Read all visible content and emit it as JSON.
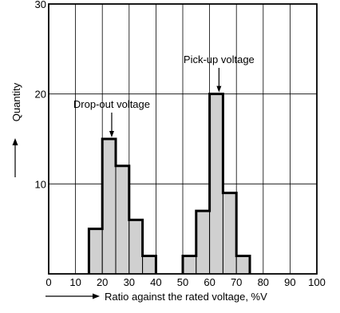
{
  "chart_data": {
    "type": "bar",
    "subtype": "histogram",
    "xlabel": "Ratio against the rated voltage, %V",
    "ylabel": "Quantity",
    "xlim": [
      0,
      100
    ],
    "ylim": [
      0,
      30
    ],
    "x_ticks": [
      "0",
      "10",
      "20",
      "30",
      "40",
      "50",
      "60",
      "70",
      "80",
      "90",
      "100"
    ],
    "y_ticks": [
      "10",
      "20",
      "30"
    ],
    "bin_width": 5,
    "grid": true,
    "bar_fill": "#d0d0d0",
    "bar_stroke": "#000000",
    "series": [
      {
        "label": "Drop-out voltage",
        "bins": [
          {
            "x0": 15,
            "x1": 20,
            "value": 5
          },
          {
            "x0": 20,
            "x1": 25,
            "value": 15
          },
          {
            "x0": 25,
            "x1": 30,
            "value": 12
          },
          {
            "x0": 30,
            "x1": 35,
            "value": 6
          },
          {
            "x0": 35,
            "x1": 40,
            "value": 2
          }
        ],
        "annotation_x": 23.5
      },
      {
        "label": "Pick-up voltage",
        "bins": [
          {
            "x0": 50,
            "x1": 55,
            "value": 2
          },
          {
            "x0": 55,
            "x1": 60,
            "value": 7
          },
          {
            "x0": 60,
            "x1": 65,
            "value": 20
          },
          {
            "x0": 65,
            "x1": 70,
            "value": 9
          },
          {
            "x0": 70,
            "x1": 75,
            "value": 2
          }
        ],
        "annotation_x": 63.5
      }
    ]
  }
}
